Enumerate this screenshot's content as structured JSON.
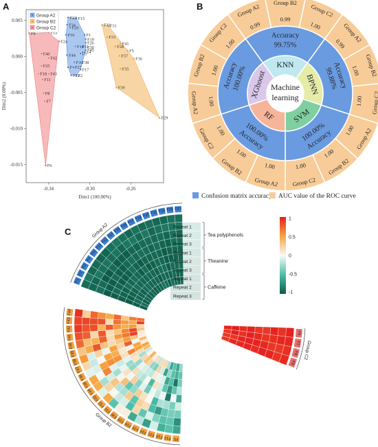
{
  "panels": {
    "a": "A",
    "b": "B",
    "c": "C"
  },
  "colors": {
    "groupA2": "#3b7fd4",
    "groupB2": "#f0a040",
    "groupC2": "#e96b6b",
    "hullA2": "#8fb4ea",
    "hullB2": "#f5c785",
    "hullC2": "#f4a2a2",
    "accuracyBlue": "#6a9be0",
    "aucOrange": "#f8cc98"
  },
  "chart_data": [
    {
      "type": "scatter",
      "xlabel": "Dim1 (100.00%)",
      "ylabel": "Dim2 (0.00%)",
      "xlim": [
        -0.362,
        -0.228
      ],
      "ylim": [
        -0.0175,
        0.0065
      ],
      "xticks": [
        -0.34,
        -0.3,
        -0.26
      ],
      "xtick_labels": [
        "-0.34",
        "-0.30",
        "-0.26"
      ],
      "yticks": [
        0.005,
        0.0,
        -0.005,
        -0.01,
        -0.015
      ],
      "ytick_labels": [
        "0.005",
        "0.000",
        "-0.005",
        "-0.010",
        "-0.015"
      ],
      "legend_position": "top-left",
      "series": [
        {
          "name": "Group A2",
          "color": "#3b7fd4",
          "marker": "square",
          "points": [
            {
              "label": "F1",
              "x": -0.305,
              "y": 0.003
            },
            {
              "label": "F2",
              "x": -0.313,
              "y": -0.0026
            },
            {
              "label": "F3",
              "x": -0.309,
              "y": 0.0004
            },
            {
              "label": "F4",
              "x": -0.321,
              "y": -0.0015
            },
            {
              "label": "F10",
              "x": -0.314,
              "y": 0.0014
            },
            {
              "label": "F11",
              "x": -0.309,
              "y": 0.0014
            },
            {
              "label": "F12",
              "x": -0.315,
              "y": -0.0008
            },
            {
              "label": "F14",
              "x": -0.307,
              "y": 0.0006
            },
            {
              "label": "F15",
              "x": -0.313,
              "y": 0.0053
            },
            {
              "label": "F16",
              "x": -0.323,
              "y": 0.003
            },
            {
              "label": "F17",
              "x": -0.309,
              "y": -0.0018
            },
            {
              "label": "F19",
              "x": -0.304,
              "y": 0.0024
            },
            {
              "label": "F20",
              "x": -0.319,
              "y": 0.004
            },
            {
              "label": "F22",
              "x": -0.321,
              "y": 0.0054
            },
            {
              "label": "F23",
              "x": -0.318,
              "y": -0.0026
            },
            {
              "label": "F26",
              "x": -0.304,
              "y": 0.0019
            },
            {
              "label": "F27",
              "x": -0.316,
              "y": -0.0015
            },
            {
              "label": "F30",
              "x": -0.304,
              "y": 0.0013
            },
            {
              "label": "F34",
              "x": -0.322,
              "y": 0.0044
            },
            {
              "label": "F38",
              "x": -0.309,
              "y": -0.0008
            },
            {
              "label": "F44",
              "x": -0.322,
              "y": 0.0002
            },
            {
              "label": "F45",
              "x": -0.304,
              "y": 0.0009
            }
          ]
        },
        {
          "name": "Group B2",
          "color": "#f0a040",
          "marker": "triangle",
          "points": [
            {
              "label": "F5",
              "x": -0.263,
              "y": 0.0008
            },
            {
              "label": "F28",
              "x": -0.275,
              "y": 0.0014
            },
            {
              "label": "F29",
              "x": -0.232,
              "y": -0.0085
            },
            {
              "label": "F31",
              "x": -0.282,
              "y": 0.0043
            },
            {
              "label": "F32",
              "x": -0.288,
              "y": 0.0044
            },
            {
              "label": "F33",
              "x": -0.283,
              "y": 0.0027
            },
            {
              "label": "F35",
              "x": -0.27,
              "y": -0.0017
            },
            {
              "label": "F36",
              "x": -0.257,
              "y": -0.0003
            },
            {
              "label": "F37",
              "x": -0.271,
              "y": 0.0001
            },
            {
              "label": "F39",
              "x": -0.274,
              "y": -0.0043
            },
            {
              "label": "F41",
              "x": -0.27,
              "y": 0.0018
            }
          ]
        },
        {
          "name": "Group C2",
          "color": "#e96b6b",
          "marker": "square",
          "points": [
            {
              "label": "F6",
              "x": -0.343,
              "y": -0.0151
            },
            {
              "label": "F7",
              "x": -0.344,
              "y": -0.0062
            },
            {
              "label": "F8",
              "x": -0.345,
              "y": -0.0051
            },
            {
              "label": "F9",
              "x": -0.359,
              "y": 0.0032
            },
            {
              "label": "F11",
              "x": -0.346,
              "y": -0.0032
            },
            {
              "label": "F13",
              "x": -0.34,
              "y": 0.0033
            },
            {
              "label": "F18",
              "x": -0.35,
              "y": -0.0024
            },
            {
              "label": "F24",
              "x": -0.33,
              "y": 0.0021
            },
            {
              "label": "F25",
              "x": -0.347,
              "y": -0.0013
            },
            {
              "label": "F40",
              "x": -0.347,
              "y": 0.0004
            },
            {
              "label": "F42",
              "x": -0.34,
              "y": -0.0002
            },
            {
              "label": "F43",
              "x": -0.34,
              "y": -0.0024
            }
          ]
        }
      ]
    },
    {
      "type": "pie",
      "center_text": [
        "Machine",
        "learning"
      ],
      "models": [
        "KNN",
        "BPNN",
        "SVM",
        "RF",
        "XGboost"
      ],
      "model_colors": [
        "#bfe8f0",
        "#e4eca8",
        "#7fcfa0",
        "#f6b49a",
        "#d9c8ea"
      ],
      "accuracy_label": "Accuracy",
      "accuracy": [
        "99.75%",
        "99.88%",
        "100.00%",
        "100.00%",
        "100.00%"
      ],
      "auc_groups": [
        "Group A2",
        "Group B2",
        "Group C2",
        "Group A2",
        "Group B2",
        "Group C2",
        "Group A2",
        "Group B2",
        "Group C2",
        "Group A2",
        "Group B2",
        "Group C2",
        "Group A2",
        "Group B2",
        "Group C2"
      ],
      "auc_values": [
        "0.99",
        "0.99",
        "1.00",
        "0.99",
        "1.00",
        "1.00",
        "1.00",
        "1.00",
        "1.00",
        "1.00",
        "1.00",
        "1.00",
        "1.00",
        "1.00",
        "1.00"
      ],
      "legend": [
        {
          "label": "Confusion matrix accuracy",
          "color": "#6a9be0"
        },
        {
          "label": "AUC value of the ROC curve",
          "color": "#f8cc98"
        }
      ]
    },
    {
      "type": "heatmap",
      "legend_max": "1",
      "legend_ticks": [
        "1",
        "0.5",
        "0",
        "-0.5",
        "-1"
      ],
      "rows": [
        "Repeat 1",
        "Repeat 2",
        "Repeat 3",
        "Repeat 1",
        "Repeat 2",
        "Repeat 3",
        "Repeat 1",
        "Repeat 2",
        "Repeat 3"
      ],
      "compound_groups": [
        "Tea polyphenols",
        "Theanine",
        "Caffeine"
      ],
      "group_labels": [
        "Group A2",
        "Group B2",
        "Group C2"
      ],
      "samples_A2": [
        "F1",
        "F2",
        "F3",
        "F4",
        "F10",
        "F11",
        "F12",
        "F14",
        "F15",
        "F16",
        "F17",
        "F19",
        "F20",
        "F22",
        "F23",
        "F26",
        "F27"
      ],
      "samples_B2": [
        "F5",
        "F13",
        "F18",
        "F21",
        "F24",
        "F25",
        "F28",
        "F29",
        "F30",
        "F31",
        "F32",
        "F33",
        "F34",
        "F35",
        "F36",
        "F37",
        "F38",
        "F39",
        "F40",
        "F41",
        "F42",
        "F43",
        "F44"
      ],
      "samples_C2": [
        "F6",
        "F7",
        "F8",
        "F9"
      ]
    }
  ]
}
